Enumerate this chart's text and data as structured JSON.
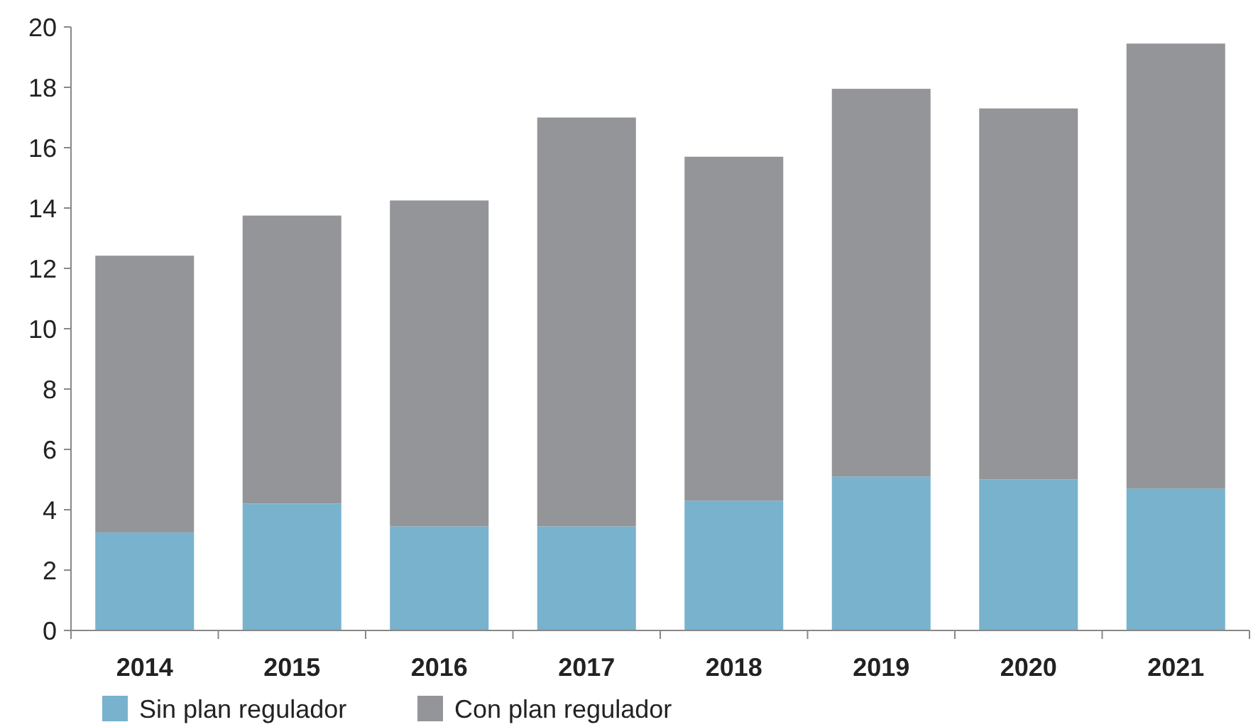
{
  "chart_data": {
    "type": "bar",
    "stacked": true,
    "categories": [
      "2014",
      "2015",
      "2016",
      "2017",
      "2018",
      "2019",
      "2020",
      "2021"
    ],
    "series": [
      {
        "name": "Sin plan regulador",
        "color": "#78b2cd",
        "values": [
          3.25,
          4.2,
          3.45,
          3.45,
          4.3,
          5.1,
          5.0,
          4.7
        ]
      },
      {
        "name": "Con plan regulador",
        "color": "#939598",
        "values": [
          9.17,
          9.55,
          10.8,
          13.55,
          11.4,
          12.85,
          12.3,
          14.75
        ]
      }
    ],
    "ylim": [
      0,
      20
    ],
    "yticks": [
      0,
      2,
      4,
      6,
      8,
      10,
      12,
      14,
      16,
      18,
      20
    ],
    "grid": false,
    "legend": "bottom left"
  }
}
